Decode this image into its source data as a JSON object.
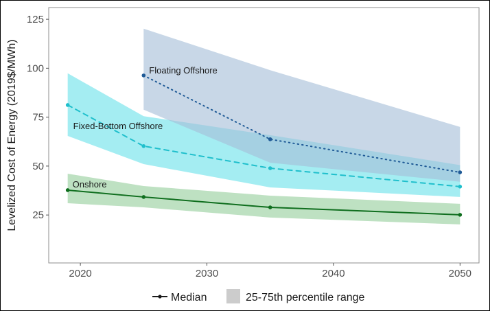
{
  "chart_data": {
    "type": "line",
    "title": "",
    "xlabel": "",
    "ylabel": "Levelized Cost of Energy (2019$/MWh)",
    "xlim": [
      2017.5,
      2051.5
    ],
    "ylim": [
      0.5,
      131
    ],
    "x_ticks": [
      2020,
      2030,
      2040,
      2050
    ],
    "x_tick_labels": [
      "2020",
      "2030",
      "2040",
      "2050"
    ],
    "y_ticks": [
      25,
      50,
      75,
      100,
      125
    ],
    "y_tick_labels": [
      "25",
      "50",
      "75",
      "100",
      "125"
    ],
    "grid": false,
    "series": [
      {
        "name": "Floating Offshore",
        "label": "Floating Offshore",
        "color": "#1f5a96",
        "band_color": "#a6bfd9",
        "line_style": "dotted",
        "x": [
          2025,
          2035,
          2050
        ],
        "median": [
          96.3,
          63.7,
          46.8
        ],
        "p25": [
          78.8,
          51.7,
          42.0
        ],
        "p75": [
          120.2,
          99.0,
          70.0
        ]
      },
      {
        "name": "Fixed-Bottom Offshore",
        "label": "Fixed-Bottom Offshore",
        "color": "#1fbfcc",
        "band_color": "#7ee6ec",
        "line_style": "dashed",
        "x": [
          2019,
          2025,
          2035,
          2050
        ],
        "median": [
          81.2,
          60.2,
          48.9,
          39.5
        ],
        "p25": [
          65.4,
          51.0,
          39.1,
          34.2
        ],
        "p75": [
          97.4,
          75.5,
          65.8,
          50.5
        ]
      },
      {
        "name": "Onshore",
        "label": "Onshore",
        "color": "#0f6e1e",
        "band_color": "#a3d4a8",
        "line_style": "solid",
        "x": [
          2019,
          2025,
          2035,
          2050
        ],
        "median": [
          37.7,
          34.2,
          28.9,
          25.1
        ],
        "p25": [
          31.0,
          28.9,
          23.7,
          20.2
        ],
        "p75": [
          46.1,
          39.8,
          34.9,
          30.7
        ]
      }
    ],
    "legend": {
      "position": "bottom",
      "items": [
        {
          "label": "Median",
          "kind": "line-point",
          "color": "#1a1a1a"
        },
        {
          "label": "25-75th percentile range",
          "kind": "fill",
          "color": "#cccccc"
        }
      ]
    }
  }
}
